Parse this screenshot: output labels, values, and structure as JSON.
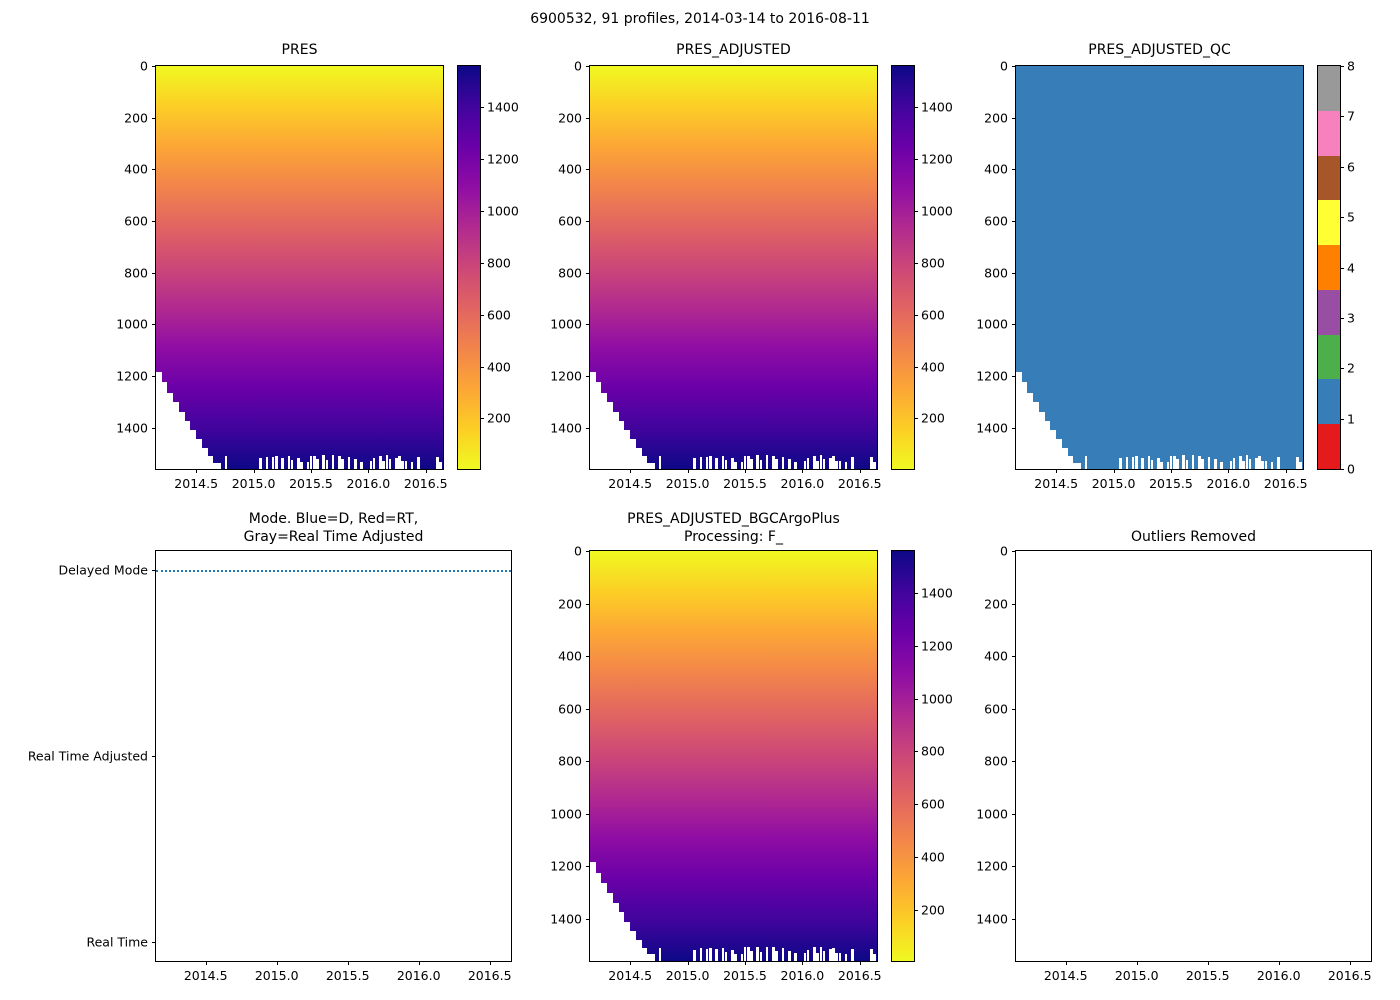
{
  "figure": {
    "suptitle": "6900532, 91 profiles, 2014-03-14 to 2016-08-11"
  },
  "colormap_stops": {
    "plasma": [
      "#0d0887",
      "#41049d",
      "#6a00a8",
      "#8f0da4",
      "#b12a90",
      "#cc4778",
      "#e16462",
      "#f2844b",
      "#fca636",
      "#fcce25",
      "#f0f921"
    ]
  },
  "chart_data": [
    {
      "id": "pres",
      "type": "heatmap",
      "title": "PRES",
      "x_range": [
        2014.15,
        2016.65
      ],
      "x_ticks": [
        "2014.5",
        "2015.0",
        "2015.5",
        "2016.0",
        "2016.5"
      ],
      "y_range": [
        0,
        1560
      ],
      "y_ticks": [
        "0",
        "200",
        "400",
        "600",
        "800",
        "1000",
        "1200",
        "1400"
      ],
      "y_inverted": true,
      "colormap": "plasma_r",
      "value_range": [
        5,
        1560
      ],
      "colorbar_ticks": [
        "200",
        "400",
        "600",
        "800",
        "1000",
        "1200",
        "1400"
      ],
      "no_data_boundary": [
        [
          2014.15,
          1185
        ],
        [
          2014.2,
          1225
        ],
        [
          2014.25,
          1265
        ],
        [
          2014.3,
          1300
        ],
        [
          2014.35,
          1340
        ],
        [
          2014.4,
          1375
        ],
        [
          2014.45,
          1410
        ],
        [
          2014.5,
          1445
        ],
        [
          2014.55,
          1480
        ],
        [
          2014.6,
          1510
        ],
        [
          2014.65,
          1535
        ],
        [
          2014.72,
          1560
        ]
      ],
      "ragged_bottom": {
        "start_x": 2014.72,
        "step": 0.0275,
        "min_depth": 1505,
        "max_depth": 1560,
        "density": 0.55
      }
    },
    {
      "id": "pres_adjusted",
      "type": "heatmap",
      "title": "PRES_ADJUSTED",
      "x_range": [
        2014.15,
        2016.65
      ],
      "x_ticks": [
        "2014.5",
        "2015.0",
        "2015.5",
        "2016.0",
        "2016.5"
      ],
      "y_range": [
        0,
        1560
      ],
      "y_ticks": [
        "0",
        "200",
        "400",
        "600",
        "800",
        "1000",
        "1200",
        "1400"
      ],
      "y_inverted": true,
      "colormap": "plasma_r",
      "value_range": [
        5,
        1560
      ],
      "colorbar_ticks": [
        "200",
        "400",
        "600",
        "800",
        "1000",
        "1200",
        "1400"
      ],
      "no_data_boundary": [
        [
          2014.15,
          1185
        ],
        [
          2014.2,
          1225
        ],
        [
          2014.25,
          1265
        ],
        [
          2014.3,
          1300
        ],
        [
          2014.35,
          1340
        ],
        [
          2014.4,
          1375
        ],
        [
          2014.45,
          1410
        ],
        [
          2014.5,
          1445
        ],
        [
          2014.55,
          1480
        ],
        [
          2014.6,
          1510
        ],
        [
          2014.65,
          1535
        ],
        [
          2014.72,
          1560
        ]
      ],
      "ragged_bottom": {
        "start_x": 2014.72,
        "step": 0.0275,
        "min_depth": 1505,
        "max_depth": 1560,
        "density": 0.55
      }
    },
    {
      "id": "pres_adjusted_qc",
      "type": "qc_heatmap",
      "title": "PRES_ADJUSTED_QC",
      "x_range": [
        2014.15,
        2016.65
      ],
      "x_ticks": [
        "2014.5",
        "2015.0",
        "2015.5",
        "2016.0",
        "2016.5"
      ],
      "y_range": [
        0,
        1560
      ],
      "y_ticks": [
        "0",
        "200",
        "400",
        "600",
        "800",
        "1000",
        "1200",
        "1400"
      ],
      "y_inverted": true,
      "qc_value": 1,
      "fill_color": "#377eb8",
      "no_data_boundary": [
        [
          2014.15,
          1185
        ],
        [
          2014.2,
          1225
        ],
        [
          2014.25,
          1265
        ],
        [
          2014.3,
          1300
        ],
        [
          2014.35,
          1340
        ],
        [
          2014.4,
          1375
        ],
        [
          2014.45,
          1410
        ],
        [
          2014.5,
          1445
        ],
        [
          2014.55,
          1480
        ],
        [
          2014.6,
          1510
        ],
        [
          2014.65,
          1535
        ],
        [
          2014.72,
          1560
        ]
      ],
      "ragged_bottom": {
        "start_x": 2014.72,
        "step": 0.0275,
        "min_depth": 1505,
        "max_depth": 1560,
        "density": 0.55
      },
      "colorbar": {
        "type": "discrete",
        "tick_labels": [
          "0",
          "1",
          "2",
          "3",
          "4",
          "5",
          "6",
          "7",
          "8"
        ],
        "colors_bottom_to_top": [
          "#e41a1c",
          "#377eb8",
          "#4daf4a",
          "#984ea3",
          "#ff7f00",
          "#ffff33",
          "#a65628",
          "#f781bf",
          "#999999"
        ]
      }
    },
    {
      "id": "mode",
      "type": "mode",
      "title_line1": "Mode. Blue=D, Red=RT,",
      "title_line2": "Gray=Real Time Adjusted",
      "x_range": [
        2014.15,
        2016.65
      ],
      "x_ticks": [
        "2014.5",
        "2015.0",
        "2015.5",
        "2016.0",
        "2016.5"
      ],
      "y_categories": [
        "Delayed Mode",
        "Real Time Adjusted",
        "Real Time"
      ],
      "line": {
        "category": "Delayed Mode",
        "color": "#1f77b4",
        "style": "dotted"
      }
    },
    {
      "id": "pres_adjusted_bgc",
      "type": "heatmap",
      "title_line1": "PRES_ADJUSTED_BGCArgoPlus",
      "title_line2": "Processing: F_",
      "x_range": [
        2014.15,
        2016.65
      ],
      "x_ticks": [
        "2014.5",
        "2015.0",
        "2015.5",
        "2016.0",
        "2016.5"
      ],
      "y_range": [
        0,
        1560
      ],
      "y_ticks": [
        "0",
        "200",
        "400",
        "600",
        "800",
        "1000",
        "1200",
        "1400"
      ],
      "y_inverted": true,
      "colormap": "plasma_r",
      "value_range": [
        5,
        1560
      ],
      "colorbar_ticks": [
        "200",
        "400",
        "600",
        "800",
        "1000",
        "1200",
        "1400"
      ],
      "no_data_boundary": [
        [
          2014.15,
          1185
        ],
        [
          2014.2,
          1225
        ],
        [
          2014.25,
          1265
        ],
        [
          2014.3,
          1300
        ],
        [
          2014.35,
          1340
        ],
        [
          2014.4,
          1375
        ],
        [
          2014.45,
          1410
        ],
        [
          2014.5,
          1445
        ],
        [
          2014.55,
          1480
        ],
        [
          2014.6,
          1510
        ],
        [
          2014.65,
          1535
        ],
        [
          2014.72,
          1560
        ]
      ],
      "ragged_bottom": {
        "start_x": 2014.72,
        "step": 0.0275,
        "min_depth": 1505,
        "max_depth": 1560,
        "density": 0.55
      }
    },
    {
      "id": "outliers_removed",
      "type": "empty",
      "title": "Outliers Removed",
      "x_range": [
        2014.15,
        2016.65
      ],
      "x_ticks": [
        "2014.5",
        "2015.0",
        "2015.5",
        "2016.0",
        "2016.5"
      ],
      "y_range": [
        0,
        1560
      ],
      "y_ticks": [
        "0",
        "200",
        "400",
        "600",
        "800",
        "1000",
        "1200",
        "1400"
      ],
      "y_inverted": true
    }
  ]
}
